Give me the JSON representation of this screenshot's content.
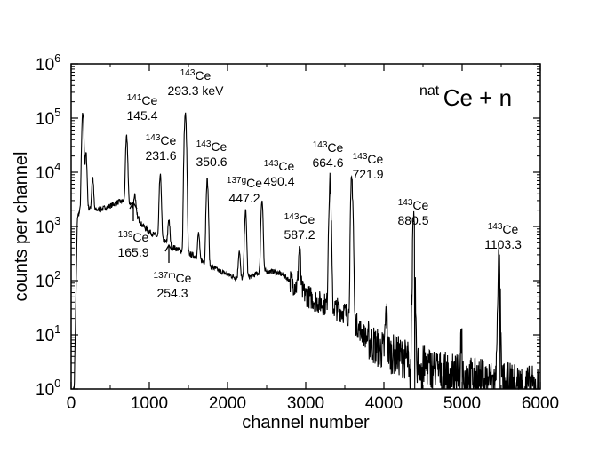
{
  "chart_data": {
    "type": "line",
    "title": {
      "sup": "nat",
      "main": "Ce + n"
    },
    "xlabel": "channel number",
    "ylabel": "counts per channel",
    "xlim": [
      0,
      6000
    ],
    "ylim": [
      1,
      1000000
    ],
    "yscale": "log",
    "x_ticks": [
      0,
      1000,
      2000,
      3000,
      4000,
      5000,
      6000
    ],
    "y_ticks": [
      {
        "exp": "0",
        "value": 1
      },
      {
        "exp": "1",
        "value": 10
      },
      {
        "exp": "2",
        "value": 100
      },
      {
        "exp": "3",
        "value": 1000
      },
      {
        "exp": "4",
        "value": 10000
      },
      {
        "exp": "5",
        "value": 100000
      },
      {
        "exp": "6",
        "value": 1000000
      }
    ],
    "line_color": "#000000",
    "background": [
      [
        40,
        1
      ],
      [
        80,
        1500
      ],
      [
        150,
        2500
      ],
      [
        200,
        2200
      ],
      [
        300,
        2000
      ],
      [
        400,
        2100
      ],
      [
        500,
        2400
      ],
      [
        600,
        2800
      ],
      [
        700,
        3000
      ],
      [
        780,
        2500
      ],
      [
        850,
        1500
      ],
      [
        900,
        1100
      ],
      [
        1000,
        800
      ],
      [
        1100,
        650
      ],
      [
        1200,
        530
      ],
      [
        1300,
        420
      ],
      [
        1400,
        360
      ],
      [
        1500,
        320
      ],
      [
        1600,
        270
      ],
      [
        1700,
        220
      ],
      [
        1800,
        180
      ],
      [
        1900,
        150
      ],
      [
        2000,
        130
      ],
      [
        2100,
        115
      ],
      [
        2200,
        110
      ],
      [
        2300,
        120
      ],
      [
        2400,
        140
      ],
      [
        2500,
        150
      ],
      [
        2600,
        145
      ],
      [
        2700,
        130
      ],
      [
        2800,
        100
      ],
      [
        2900,
        75
      ],
      [
        3000,
        55
      ],
      [
        3100,
        45
      ],
      [
        3200,
        38
      ],
      [
        3300,
        35
      ],
      [
        3400,
        30
      ],
      [
        3500,
        26
      ],
      [
        3600,
        20
      ],
      [
        3700,
        12
      ],
      [
        3800,
        8
      ],
      [
        3900,
        6
      ],
      [
        4000,
        5
      ],
      [
        4200,
        4
      ],
      [
        4400,
        3
      ],
      [
        4600,
        2.5
      ],
      [
        4800,
        2
      ],
      [
        5000,
        1.8
      ],
      [
        5200,
        1.6
      ],
      [
        5400,
        1.4
      ],
      [
        5600,
        1.3
      ],
      [
        5800,
        1.2
      ],
      [
        5990,
        1.1
      ]
    ],
    "peaks": [
      {
        "x": 150,
        "y": 120000
      },
      {
        "x": 190,
        "y": 20000
      },
      {
        "x": 275,
        "y": 6000
      },
      {
        "x": 710,
        "y": 42000
      },
      {
        "x": 815,
        "y": 2000
      },
      {
        "x": 1140,
        "y": 8000
      },
      {
        "x": 1250,
        "y": 900
      },
      {
        "x": 1460,
        "y": 120000
      },
      {
        "x": 1630,
        "y": 500
      },
      {
        "x": 1740,
        "y": 7000
      },
      {
        "x": 2150,
        "y": 250
      },
      {
        "x": 2230,
        "y": 1800
      },
      {
        "x": 2440,
        "y": 3000
      },
      {
        "x": 2920,
        "y": 330
      },
      {
        "x": 3310,
        "y": 6000
      },
      {
        "x": 3590,
        "y": 7000
      },
      {
        "x": 4030,
        "y": 20
      },
      {
        "x": 4380,
        "y": 820
      },
      {
        "x": 4990,
        "y": 8
      },
      {
        "x": 5470,
        "y": 220
      }
    ],
    "annotations": [
      {
        "sup": "141",
        "name": "Ce",
        "energy": "145.4",
        "x": 160,
        "y": 118
      },
      {
        "sup": "143",
        "name": "Ce",
        "energy": "293.3 keV",
        "x": 220,
        "y": 90
      },
      {
        "sup": "143",
        "name": "Ce",
        "energy": "231.6",
        "x": 181,
        "y": 163
      },
      {
        "sup": "143",
        "name": "Ce",
        "energy": "350.6",
        "x": 238,
        "y": 170
      },
      {
        "sup": "137g",
        "name": "Ce",
        "energy": "447.2",
        "x": 275,
        "y": 211
      },
      {
        "sup": "143",
        "name": "Ce",
        "energy": "490.4",
        "x": 314,
        "y": 192
      },
      {
        "sup": "143",
        "name": "Ce",
        "energy": "587.2",
        "x": 337,
        "y": 252
      },
      {
        "sup": "143",
        "name": "Ce",
        "energy": "664.6",
        "x": 369,
        "y": 171
      },
      {
        "sup": "143",
        "name": "Ce",
        "energy": "721.9",
        "x": 414,
        "y": 184
      },
      {
        "sup": "143",
        "name": "Ce",
        "energy": "880.5",
        "x": 465,
        "y": 236
      },
      {
        "sup": "143",
        "name": "Ce",
        "energy": "1103.3",
        "x": 566,
        "y": 263
      },
      {
        "sup": "139",
        "name": "Ce",
        "energy": "165.9",
        "x": 150,
        "y": 272
      },
      {
        "sup": "137m",
        "name": "Ce",
        "energy": "254.3",
        "x": 194,
        "y": 318
      }
    ],
    "arrows": [
      {
        "x": 150,
        "y1": 249,
        "y2": 228
      },
      {
        "x": 190,
        "y1": 296,
        "y2": 276
      }
    ]
  }
}
